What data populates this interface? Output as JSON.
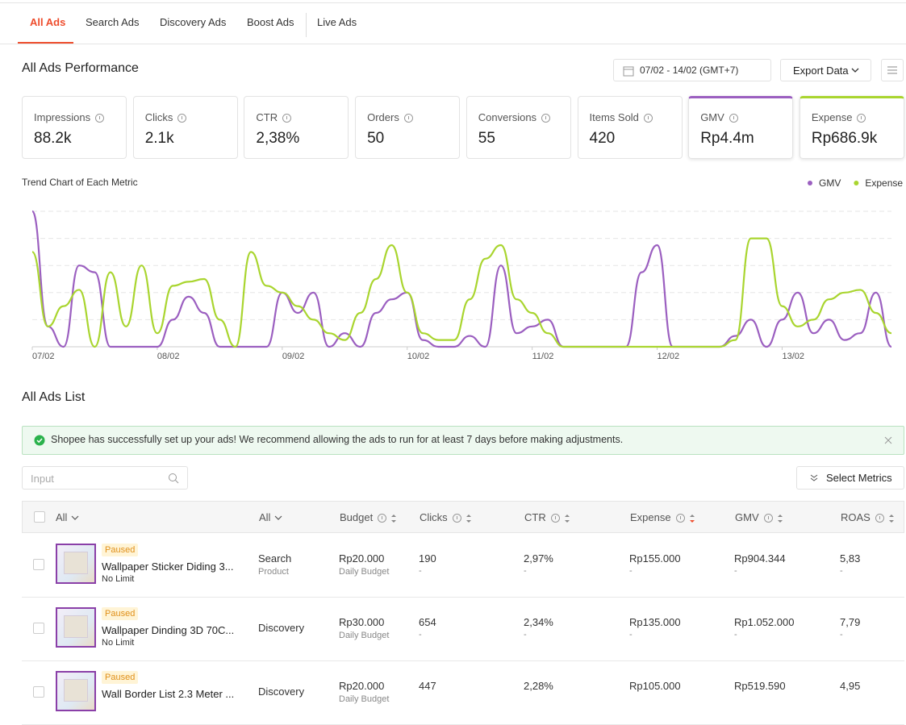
{
  "tabs": [
    "All Ads",
    "Search Ads",
    "Discovery Ads",
    "Boost Ads",
    "Live Ads"
  ],
  "performance": {
    "title": "All Ads Performance",
    "date_range": "07/02 - 14/02 (GMT+7)",
    "export": "Export Data",
    "metrics": [
      {
        "label": "Impressions",
        "value": "88.2k"
      },
      {
        "label": "Clicks",
        "value": "2.1k"
      },
      {
        "label": "CTR",
        "value": "2,38%"
      },
      {
        "label": "Orders",
        "value": "50"
      },
      {
        "label": "Conversions",
        "value": "55"
      },
      {
        "label": "Items Sold",
        "value": "420"
      },
      {
        "label": "GMV",
        "value": "Rp4.4m",
        "accent": "#9b5fc0"
      },
      {
        "label": "Expense",
        "value": "Rp686.9k",
        "accent": "#a9d52f"
      }
    ]
  },
  "trend_chart": {
    "type": "line",
    "title": "Trend Chart of Each Metric",
    "xlim": [
      0,
      55
    ],
    "xticks": [
      {
        "value": 0,
        "label": "07/02"
      },
      {
        "value": 8,
        "label": "08/02"
      },
      {
        "value": 16,
        "label": "09/02"
      },
      {
        "value": 24,
        "label": "10/02"
      },
      {
        "value": 32,
        "label": "11/02"
      },
      {
        "value": 40,
        "label": "12/02"
      },
      {
        "value": 48,
        "label": "13/02"
      }
    ],
    "ylim": [
      0,
      100
    ],
    "grid": true,
    "series": [
      {
        "name": "GMV",
        "color": "#9b5fc0",
        "values": [
          100,
          15,
          0,
          60,
          55,
          0,
          0,
          0,
          0,
          20,
          37,
          25,
          0,
          0,
          0,
          0,
          40,
          25,
          40,
          0,
          10,
          0,
          25,
          35,
          40,
          5,
          0,
          0,
          8,
          0,
          60,
          10,
          15,
          20,
          0,
          0,
          0,
          0,
          0,
          55,
          75,
          0,
          0,
          0,
          0,
          8,
          20,
          0,
          20,
          40,
          10,
          20,
          5,
          10,
          40,
          0
        ]
      },
      {
        "name": "Expense",
        "color": "#a9d52f",
        "values": [
          70,
          15,
          30,
          42,
          0,
          55,
          15,
          60,
          10,
          45,
          48,
          50,
          20,
          0,
          70,
          45,
          40,
          30,
          20,
          10,
          5,
          25,
          50,
          75,
          40,
          10,
          5,
          5,
          35,
          65,
          75,
          35,
          25,
          10,
          0,
          0,
          0,
          0,
          0,
          0,
          0,
          0,
          0,
          0,
          0,
          5,
          80,
          80,
          30,
          15,
          20,
          35,
          40,
          42,
          25,
          10
        ]
      }
    ]
  },
  "list": {
    "title": "All Ads List",
    "notice": "Shopee has successfully set up your ads! We recommend allowing the ads to run for at least 7 days before making adjustments.",
    "search_placeholder": "Input",
    "select_metrics": "Select Metrics",
    "headers": [
      "All",
      "All",
      "Budget",
      "Clicks",
      "CTR",
      "Expense",
      "GMV",
      "ROAS"
    ],
    "rows": [
      {
        "status": "Paused",
        "name": "Wallpaper Sticker Diding 3...",
        "limit": "No Limit",
        "type": "Search",
        "subtype": "Product",
        "budget": "Rp20.000",
        "budget_type": "Daily Budget",
        "clicks": "190",
        "ctr": "2,97%",
        "expense": "Rp155.000",
        "gmv": "Rp904.344",
        "roas": "5,83",
        "dash": "-"
      },
      {
        "status": "Paused",
        "name": "Wallpaper Dinding 3D 70C...",
        "limit": "No Limit",
        "type": "Discovery",
        "budget": "Rp30.000",
        "budget_type": "Daily Budget",
        "clicks": "654",
        "ctr": "2,34%",
        "expense": "Rp135.000",
        "gmv": "Rp1.052.000",
        "roas": "7,79",
        "dash": "-"
      },
      {
        "status": "Paused",
        "name": "Wall Border List 2.3 Meter ...",
        "type": "Discovery",
        "budget": "Rp20.000",
        "budget_type": "Daily Budget",
        "clicks": "447",
        "ctr": "2,28%",
        "expense": "Rp105.000",
        "gmv": "Rp519.590",
        "roas": "4,95"
      }
    ]
  }
}
